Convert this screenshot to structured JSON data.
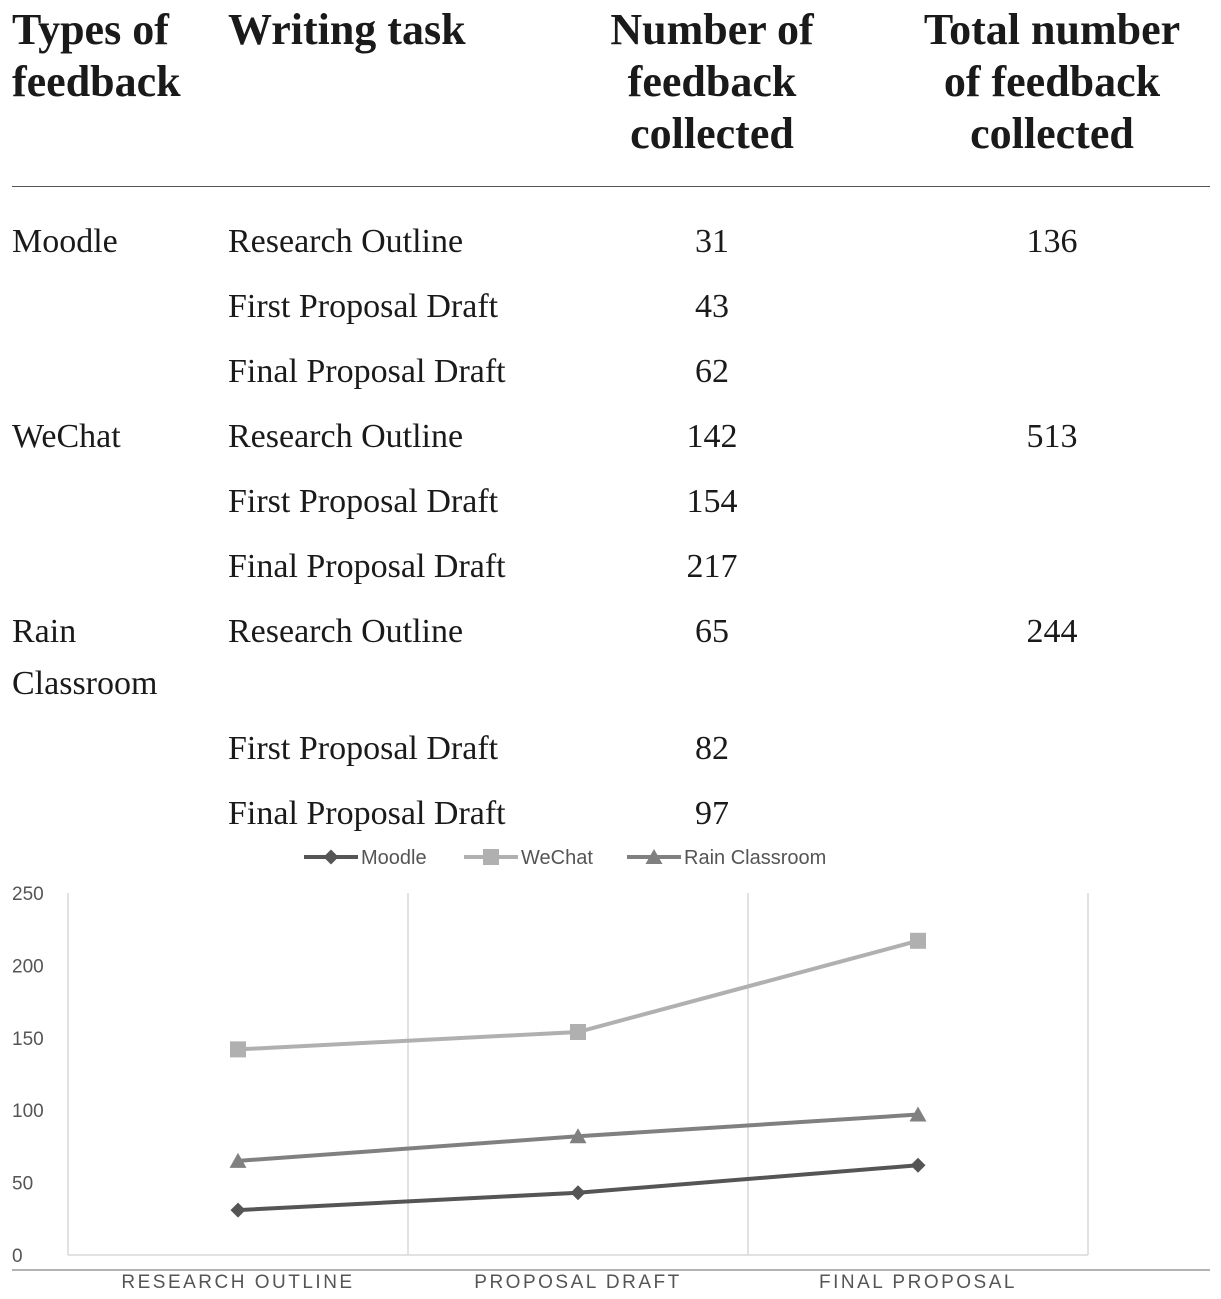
{
  "table": {
    "headers": {
      "type": [
        "Types of",
        "feedback"
      ],
      "task": [
        "Writing task"
      ],
      "number": [
        "Number of",
        "feedback",
        "collected"
      ],
      "total": [
        "Total number",
        "of feedback",
        "collected"
      ]
    },
    "groups": [
      {
        "name": [
          "Moodle"
        ],
        "total": "136",
        "rows": [
          {
            "task": "Research Outline",
            "count": "31"
          },
          {
            "task": "First Proposal Draft",
            "count": "43"
          },
          {
            "task": "Final Proposal Draft",
            "count": "62"
          }
        ]
      },
      {
        "name": [
          "WeChat"
        ],
        "total": "513",
        "rows": [
          {
            "task": "Research Outline",
            "count": "142"
          },
          {
            "task": "First Proposal Draft",
            "count": "154"
          },
          {
            "task": "Final Proposal Draft",
            "count": "217"
          }
        ]
      },
      {
        "name": [
          "Rain",
          "Classroom"
        ],
        "total": "244",
        "rows": [
          {
            "task": "Research Outline",
            "count": "65"
          },
          {
            "task": "First Proposal Draft",
            "count": "82"
          },
          {
            "task": "Final Proposal Draft",
            "count": "97"
          }
        ]
      }
    ]
  },
  "chart_data": {
    "type": "line",
    "categories": [
      "RESEARCH OUTLINE",
      "PROPOSAL DRAFT",
      "FINAL PROPOSAL"
    ],
    "series": [
      {
        "name": "Moodle",
        "values": [
          31,
          43,
          62
        ],
        "color": "#555555",
        "marker": "diamond"
      },
      {
        "name": "WeChat",
        "values": [
          142,
          154,
          217
        ],
        "color": "#b0b0b0",
        "marker": "square"
      },
      {
        "name": "Rain Classroom",
        "values": [
          65,
          82,
          97
        ],
        "color": "#808080",
        "marker": "triangle"
      }
    ],
    "y_ticks": [
      "0",
      "50",
      "100",
      "150",
      "200",
      "250"
    ],
    "ylim": [
      0,
      250
    ],
    "legend_position": "top",
    "grid": "vertical"
  }
}
